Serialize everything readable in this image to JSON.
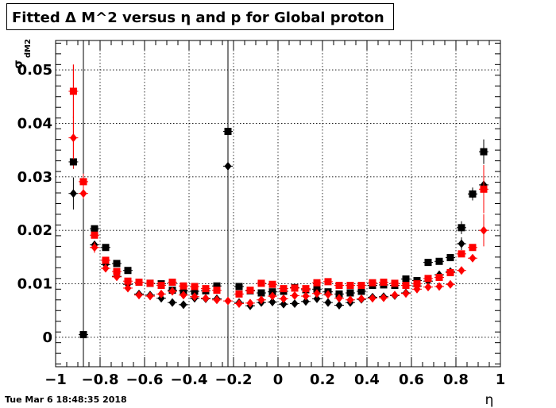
{
  "title": "Fitted Δ M^2 versus η and p for Global proton",
  "timestamp": "Tue Mar  6 18:48:35 2018",
  "chart_data": {
    "type": "scatter",
    "title": "Fitted Δ M^2 versus η and p for Global proton",
    "xlabel": "η",
    "ylabel": "σ_dM2",
    "xlim": [
      -1,
      1
    ],
    "ylim": [
      -0.0055,
      0.0555
    ],
    "grid": true,
    "x_ticks": [
      -1,
      -0.8,
      -0.6,
      -0.4,
      -0.2,
      0,
      0.2,
      0.4,
      0.6,
      0.8,
      1
    ],
    "x_tick_labels": [
      "−1",
      "−0.8",
      "−0.6",
      "−0.4",
      "−0.2",
      "0",
      "0.2",
      "0.4",
      "0.6",
      "0.8",
      "1"
    ],
    "y_ticks": [
      0,
      0.01,
      0.02,
      0.03,
      0.04,
      0.05
    ],
    "y_tick_labels": [
      "0",
      "0.01",
      "0.02",
      "0.03",
      "0.04",
      "0.05"
    ],
    "series": [
      {
        "color": "#000000",
        "marker": "square",
        "points": [
          [
            -0.92,
            0.0328,
            0
          ],
          [
            -0.875,
            0.0005,
            0
          ],
          [
            -0.825,
            0.0203,
            0
          ],
          [
            -0.775,
            0.0168,
            0
          ],
          [
            -0.725,
            0.0138,
            0
          ],
          [
            -0.675,
            0.0125,
            0
          ],
          [
            -0.625,
            0.0103,
            0
          ],
          [
            -0.575,
            0.0101,
            0
          ],
          [
            -0.525,
            0.01,
            0
          ],
          [
            -0.475,
            0.0088,
            0
          ],
          [
            -0.425,
            0.0087,
            0
          ],
          [
            -0.375,
            0.0086,
            0
          ],
          [
            -0.325,
            0.0087,
            0
          ],
          [
            -0.275,
            0.0096,
            0
          ],
          [
            -0.225,
            0.0385,
            0
          ],
          [
            -0.175,
            0.0095,
            0
          ],
          [
            -0.125,
            0.0087,
            0
          ],
          [
            -0.075,
            0.0083,
            0
          ],
          [
            -0.025,
            0.0085,
            0
          ],
          [
            0.025,
            0.0086,
            0
          ],
          [
            0.075,
            0.0093,
            0
          ],
          [
            0.125,
            0.0089,
            0
          ],
          [
            0.175,
            0.009,
            0
          ],
          [
            0.225,
            0.0085,
            0
          ],
          [
            0.275,
            0.0081,
            0
          ],
          [
            0.325,
            0.0083,
            0
          ],
          [
            0.375,
            0.0086,
            0
          ],
          [
            0.425,
            0.0097,
            0
          ],
          [
            0.475,
            0.0098,
            0
          ],
          [
            0.525,
            0.0097,
            0
          ],
          [
            0.575,
            0.0109,
            0
          ],
          [
            0.625,
            0.0106,
            0
          ],
          [
            0.675,
            0.014,
            0
          ],
          [
            0.725,
            0.0142,
            0
          ],
          [
            0.775,
            0.0149,
            0
          ],
          [
            0.825,
            0.0205,
            0.0012
          ],
          [
            0.875,
            0.0268,
            0.0008
          ],
          [
            0.925,
            0.0347,
            0.0023
          ]
        ]
      },
      {
        "color": "#000000",
        "marker": "diamond",
        "points": [
          [
            -0.92,
            0.0269,
            0.003
          ],
          [
            -0.825,
            0.0173,
            0
          ],
          [
            -0.775,
            0.0136,
            0
          ],
          [
            -0.725,
            0.0114,
            0
          ],
          [
            -0.675,
            0.0099,
            0
          ],
          [
            -0.625,
            0.0081,
            0
          ],
          [
            -0.575,
            0.0079,
            0
          ],
          [
            -0.525,
            0.0073,
            0
          ],
          [
            -0.475,
            0.0065,
            0
          ],
          [
            -0.425,
            0.0061,
            0
          ],
          [
            -0.375,
            0.0073,
            0
          ],
          [
            -0.325,
            0.0072,
            0
          ],
          [
            -0.275,
            0.0072,
            0
          ],
          [
            -0.225,
            0.032,
            0
          ],
          [
            -0.175,
            0.0065,
            0
          ],
          [
            -0.125,
            0.0059,
            0
          ],
          [
            -0.075,
            0.0065,
            0
          ],
          [
            -0.025,
            0.0066,
            0
          ],
          [
            0.025,
            0.0062,
            0
          ],
          [
            0.075,
            0.0063,
            0
          ],
          [
            0.125,
            0.0067,
            0
          ],
          [
            0.175,
            0.0072,
            0
          ],
          [
            0.225,
            0.0065,
            0
          ],
          [
            0.275,
            0.006,
            0
          ],
          [
            0.325,
            0.0065,
            0
          ],
          [
            0.375,
            0.0071,
            0
          ],
          [
            0.425,
            0.0075,
            0
          ],
          [
            0.475,
            0.0076,
            0
          ],
          [
            0.525,
            0.0078,
            0
          ],
          [
            0.575,
            0.0083,
            0
          ],
          [
            0.625,
            0.0096,
            0
          ],
          [
            0.675,
            0.0105,
            0
          ],
          [
            0.725,
            0.0117,
            0
          ],
          [
            0.775,
            0.0123,
            0
          ],
          [
            0.825,
            0.0175,
            0.0012
          ],
          [
            0.875,
            0.0268,
            0.0012
          ],
          [
            0.925,
            0.0285,
            0.0015
          ]
        ]
      },
      {
        "color": "#ff0000",
        "marker": "square",
        "points": [
          [
            -0.92,
            0.046,
            0.005
          ],
          [
            -0.875,
            0.0291,
            0.0015
          ],
          [
            -0.825,
            0.0191,
            0
          ],
          [
            -0.775,
            0.0144,
            0
          ],
          [
            -0.725,
            0.0123,
            0
          ],
          [
            -0.675,
            0.0105,
            0
          ],
          [
            -0.625,
            0.0103,
            0
          ],
          [
            -0.575,
            0.0101,
            0
          ],
          [
            -0.525,
            0.0097,
            0
          ],
          [
            -0.475,
            0.0103,
            0
          ],
          [
            -0.425,
            0.0096,
            0
          ],
          [
            -0.375,
            0.0095,
            0
          ],
          [
            -0.325,
            0.0091,
            0
          ],
          [
            -0.275,
            0.0088,
            0
          ],
          [
            -0.175,
            0.0081,
            0
          ],
          [
            -0.125,
            0.0088,
            0
          ],
          [
            -0.075,
            0.0101,
            0
          ],
          [
            -0.025,
            0.0099,
            0
          ],
          [
            0.025,
            0.0091,
            0
          ],
          [
            0.075,
            0.0092,
            0
          ],
          [
            0.125,
            0.0091,
            0
          ],
          [
            0.175,
            0.0102,
            0
          ],
          [
            0.225,
            0.0104,
            0
          ],
          [
            0.275,
            0.0097,
            0
          ],
          [
            0.325,
            0.0097,
            0
          ],
          [
            0.375,
            0.0097,
            0
          ],
          [
            0.425,
            0.0102,
            0
          ],
          [
            0.475,
            0.0103,
            0
          ],
          [
            0.525,
            0.0101,
            0
          ],
          [
            0.575,
            0.0097,
            0
          ],
          [
            0.625,
            0.01,
            0
          ],
          [
            0.675,
            0.011,
            0
          ],
          [
            0.725,
            0.0112,
            0
          ],
          [
            0.775,
            0.0121,
            0
          ],
          [
            0.825,
            0.0156,
            0
          ],
          [
            0.875,
            0.0168,
            0
          ],
          [
            0.925,
            0.0277,
            0.0045
          ]
        ]
      },
      {
        "color": "#ff0000",
        "marker": "diamond",
        "points": [
          [
            -0.92,
            0.0373,
            0.004
          ],
          [
            -0.875,
            0.0269,
            0.001
          ],
          [
            -0.825,
            0.0168,
            0.001
          ],
          [
            -0.775,
            0.0129,
            0
          ],
          [
            -0.725,
            0.0113,
            0
          ],
          [
            -0.675,
            0.0092,
            0
          ],
          [
            -0.625,
            0.0079,
            0
          ],
          [
            -0.575,
            0.0077,
            0
          ],
          [
            -0.525,
            0.0081,
            0
          ],
          [
            -0.475,
            0.0086,
            0
          ],
          [
            -0.425,
            0.0079,
            0
          ],
          [
            -0.375,
            0.0076,
            0
          ],
          [
            -0.325,
            0.0073,
            0
          ],
          [
            -0.275,
            0.007,
            0
          ],
          [
            -0.225,
            0.0068,
            0
          ],
          [
            -0.175,
            0.0063,
            0
          ],
          [
            -0.125,
            0.0064,
            0
          ],
          [
            -0.075,
            0.007,
            0
          ],
          [
            -0.025,
            0.0077,
            0
          ],
          [
            0.025,
            0.0072,
            0
          ],
          [
            0.075,
            0.0078,
            0
          ],
          [
            0.125,
            0.0077,
            0
          ],
          [
            0.175,
            0.0082,
            0
          ],
          [
            0.225,
            0.008,
            0
          ],
          [
            0.275,
            0.0073,
            0
          ],
          [
            0.325,
            0.007,
            0
          ],
          [
            0.375,
            0.0072,
            0
          ],
          [
            0.425,
            0.0073,
            0
          ],
          [
            0.475,
            0.0074,
            0
          ],
          [
            0.525,
            0.0079,
            0
          ],
          [
            0.575,
            0.0082,
            0
          ],
          [
            0.625,
            0.009,
            0
          ],
          [
            0.675,
            0.0094,
            0
          ],
          [
            0.725,
            0.0095,
            0
          ],
          [
            0.775,
            0.0099,
            0
          ],
          [
            0.825,
            0.0125,
            0
          ],
          [
            0.875,
            0.0148,
            0
          ],
          [
            0.925,
            0.02,
            0.003
          ]
        ]
      }
    ],
    "long_error_bars": [
      {
        "x": -0.875,
        "ymin": -0.0055,
        "ymax": 0.0555,
        "color": "#000000"
      },
      {
        "x": -0.225,
        "ymin": -0.0055,
        "ymax": 0.0555,
        "color": "#000000"
      },
      {
        "x": -0.92,
        "ymin": 0.0315,
        "ymax": 0.051,
        "color": "#cc0000"
      }
    ]
  }
}
